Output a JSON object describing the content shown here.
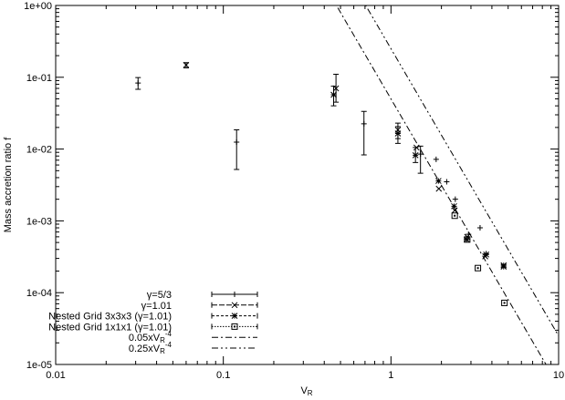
{
  "chart_data": {
    "type": "scatter",
    "xscale": "log",
    "yscale": "log",
    "xlim": [
      0.01,
      10
    ],
    "ylim": [
      1e-05,
      1
    ],
    "xlabel": "V_R",
    "ylabel": "Mass accretion ratio f",
    "grid": false,
    "legend_position": "bottom-left",
    "xticks": [
      {
        "value": 0.01,
        "label": "0.01"
      },
      {
        "value": 0.1,
        "label": "0.1"
      },
      {
        "value": 1,
        "label": "1"
      },
      {
        "value": 10,
        "label": "10"
      }
    ],
    "yticks": [
      {
        "value": 1,
        "label": "1e+00"
      },
      {
        "value": 0.1,
        "label": "1e-01"
      },
      {
        "value": 0.01,
        "label": "1e-02"
      },
      {
        "value": 0.001,
        "label": "1e-03"
      },
      {
        "value": 0.0001,
        "label": "1e-04"
      },
      {
        "value": 1e-05,
        "label": "1e-05"
      }
    ],
    "series": [
      {
        "name": "γ=5/3",
        "marker": "plus",
        "errorbars": true,
        "points": [
          {
            "x": 0.031,
            "y": 0.083,
            "lo": 0.068,
            "hi": 0.099
          },
          {
            "x": 0.12,
            "y": 0.0125,
            "lo": 0.0052,
            "hi": 0.0185
          },
          {
            "x": 0.69,
            "y": 0.0225,
            "lo": 0.0083,
            "hi": 0.0335
          },
          {
            "x": 1.5,
            "y": 0.0085,
            "lo": 0.0046,
            "hi": 0.011
          },
          {
            "x": 1.86,
            "y": 0.0072
          },
          {
            "x": 2.15,
            "y": 0.0035
          },
          {
            "x": 2.42,
            "y": 0.002
          },
          {
            "x": 2.9,
            "y": 0.00065
          },
          {
            "x": 3.4,
            "y": 0.0008
          },
          {
            "x": 3.7,
            "y": 0.00035
          },
          {
            "x": 4.7,
            "y": 0.00023
          }
        ]
      },
      {
        "name": "γ=1.01",
        "marker": "cross",
        "errorbars": true,
        "points": [
          {
            "x": 0.06,
            "y": 0.148,
            "lo": 0.135,
            "hi": 0.16
          },
          {
            "x": 0.47,
            "y": 0.07,
            "lo": 0.045,
            "hi": 0.11
          },
          {
            "x": 1.1,
            "y": 0.0185,
            "lo": 0.014,
            "hi": 0.023
          },
          {
            "x": 1.42,
            "y": 0.0105
          },
          {
            "x": 1.93,
            "y": 0.0028
          },
          {
            "x": 2.4,
            "y": 0.0014
          },
          {
            "x": 2.85,
            "y": 0.0006
          },
          {
            "x": 3.65,
            "y": 0.00032
          },
          {
            "x": 4.7,
            "y": 0.00023
          }
        ]
      },
      {
        "name": "Nested Grid 3x3x3 (γ=1.01)",
        "marker": "star",
        "errorbars": true,
        "points": [
          {
            "x": 0.455,
            "y": 0.057,
            "lo": 0.04,
            "hi": 0.075
          },
          {
            "x": 1.1,
            "y": 0.0165,
            "lo": 0.012,
            "hi": 0.0205
          },
          {
            "x": 1.4,
            "y": 0.0082,
            "lo": 0.0065,
            "hi": 0.0105
          },
          {
            "x": 1.92,
            "y": 0.0036
          },
          {
            "x": 2.38,
            "y": 0.0016
          },
          {
            "x": 2.83,
            "y": 0.00055
          },
          {
            "x": 3.7,
            "y": 0.00034
          },
          {
            "x": 4.7,
            "y": 0.00024
          }
        ]
      },
      {
        "name": "Nested Grid 1x1x1 (γ=1.01)",
        "marker": "square",
        "errorbars": true,
        "points": [
          {
            "x": 2.4,
            "y": 0.00118
          },
          {
            "x": 2.85,
            "y": 0.00055
          },
          {
            "x": 3.3,
            "y": 0.00022
          },
          {
            "x": 4.75,
            "y": 7.2e-05
          }
        ]
      },
      {
        "name": "0.05xV_R^-4",
        "type": "line",
        "function": {
          "coef": 0.05,
          "power": -4
        },
        "dash": "7,3,2,3"
      },
      {
        "name": "0.25xV_R^-4",
        "type": "line",
        "function": {
          "coef": 0.25,
          "power": -4
        },
        "dash": "7,3,2,3,2,3"
      }
    ]
  }
}
